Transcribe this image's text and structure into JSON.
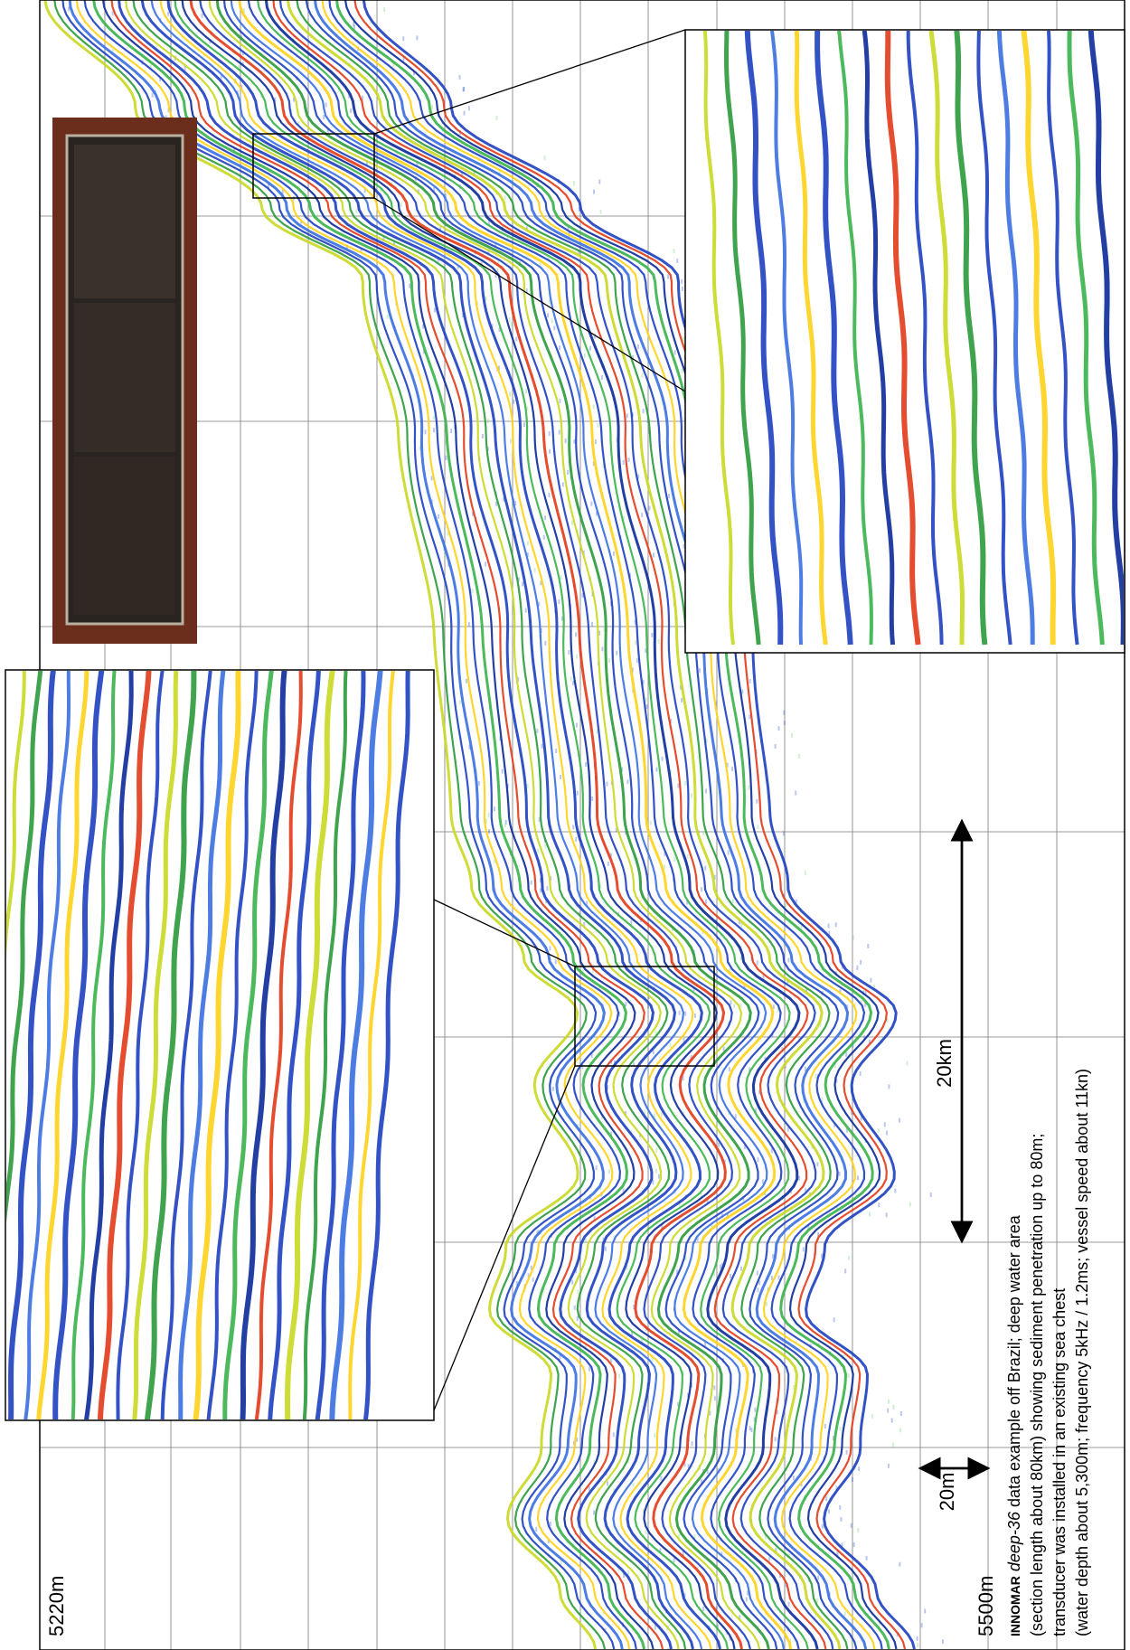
{
  "labels": {
    "top_depth": "5220m",
    "bottom_depth": "5500m",
    "horizontal_scale": "20km",
    "vertical_scale": "20m"
  },
  "caption": {
    "brand": "INNOMAR",
    "model": "deep-36",
    "line1": "data example off Brazil; deep water area",
    "line2": "(section length about 80km) showing sediment penetration up to 80m;",
    "line3": "transducer was installed in an existing sea chest",
    "line4": "(water depth about 5,300m; frequency 5kHz / 1.2ms; vessel speed about 11kn)"
  }
}
